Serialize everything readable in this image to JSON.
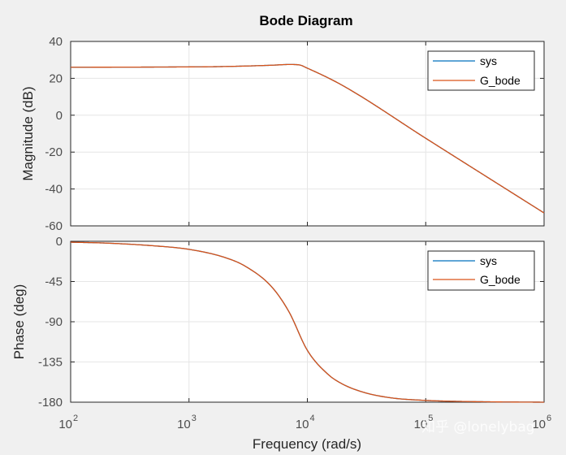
{
  "chart_data": {
    "type": "line",
    "title": "Bode Diagram",
    "xlabel": "Frequency  (rad/s)",
    "xscale": "log",
    "xlim": [
      100,
      1000000
    ],
    "x_ticks": [
      {
        "base": "10",
        "exp": "2",
        "value": 100
      },
      {
        "base": "10",
        "exp": "3",
        "value": 1000
      },
      {
        "base": "10",
        "exp": "4",
        "value": 10000
      },
      {
        "base": "10",
        "exp": "5",
        "value": 100000
      },
      {
        "base": "10",
        "exp": "6",
        "value": 1000000
      }
    ],
    "legend_entries": [
      "sys",
      "G_bode"
    ],
    "legend_position": "top-right",
    "subplots": [
      {
        "name": "magnitude",
        "ylabel": "Magnitude (dB)",
        "ylim": [
          -60,
          40
        ],
        "yticks": [
          40,
          20,
          0,
          -20,
          -40,
          -60
        ],
        "ytick_labels": [
          "40",
          "20",
          "0",
          "-20",
          "-40",
          "-60"
        ],
        "series": [
          {
            "name": "sys",
            "color": "#0072bd",
            "x": [
              100,
              1000,
              2000,
              5000,
              7000,
              8500,
              10000,
              20000,
              100000,
              1000000
            ],
            "y": [
              26,
              26.2,
              26.4,
              27.1,
              27.5,
              27.3,
              25.5,
              16,
              -12.5,
              -53
            ]
          },
          {
            "name": "G_bode",
            "color": "#d95319",
            "x": [
              100,
              1000,
              2000,
              5000,
              7000,
              8500,
              10000,
              20000,
              100000,
              1000000
            ],
            "y": [
              26,
              26.2,
              26.4,
              27.1,
              27.5,
              27.3,
              25.5,
              16,
              -12.5,
              -53
            ]
          }
        ]
      },
      {
        "name": "phase",
        "ylabel": "Phase (deg)",
        "ylim": [
          -180,
          0
        ],
        "yticks": [
          0,
          -45,
          -90,
          -135,
          -180
        ],
        "ytick_labels": [
          "0",
          "-45",
          "-90",
          "-135",
          "-180"
        ],
        "series": [
          {
            "name": "sys",
            "color": "#0072bd",
            "x": [
              100,
              200,
              500,
              1000,
              2000,
              3000,
              5000,
              7000,
              10000,
              15000,
              20000,
              30000,
              50000,
              100000,
              300000,
              1000000
            ],
            "y": [
              -1,
              -2,
              -5,
              -9,
              -18,
              -28,
              -51,
              -79,
              -122,
              -149,
              -160,
              -169,
              -175,
              -178,
              -179.5,
              -180
            ]
          },
          {
            "name": "G_bode",
            "color": "#d95319",
            "x": [
              100,
              200,
              500,
              1000,
              2000,
              3000,
              5000,
              7000,
              10000,
              15000,
              20000,
              30000,
              50000,
              100000,
              300000,
              1000000
            ],
            "y": [
              -1,
              -2,
              -5,
              -9,
              -18,
              -28,
              -51,
              -79,
              -122,
              -149,
              -160,
              -169,
              -175,
              -178,
              -179.5,
              -180
            ]
          }
        ]
      }
    ]
  },
  "watermark": "知乎 @lonelybag"
}
